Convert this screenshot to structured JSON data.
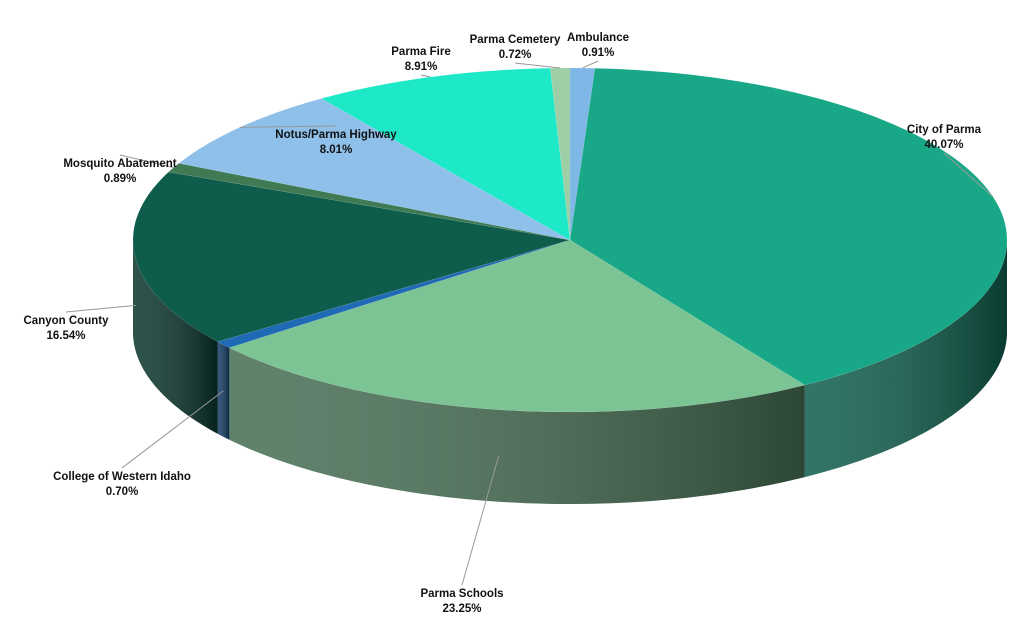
{
  "chart_data": {
    "type": "pie",
    "categories": [
      "Ambulance",
      "City of Parma",
      "Parma Schools",
      "College of Western Idaho",
      "Canyon County",
      "Mosquito Abatement",
      "Notus/Parma Highway",
      "Parma Fire",
      "Parma Cemetery"
    ],
    "values": [
      0.91,
      40.07,
      23.25,
      0.7,
      16.54,
      0.89,
      8.01,
      8.91,
      0.72
    ],
    "value_labels": [
      "0.91%",
      "40.07%",
      "23.25%",
      "0.70%",
      "16.54%",
      "0.89%",
      "8.01%",
      "8.91%",
      "0.72%"
    ],
    "colors": [
      "#7fb7e6",
      "#18a888",
      "#7cc494",
      "#1f6ab5",
      "#0e5c4c",
      "#3f7a54",
      "#8ec0ea",
      "#1de8c8",
      "#9ccfa6"
    ]
  }
}
